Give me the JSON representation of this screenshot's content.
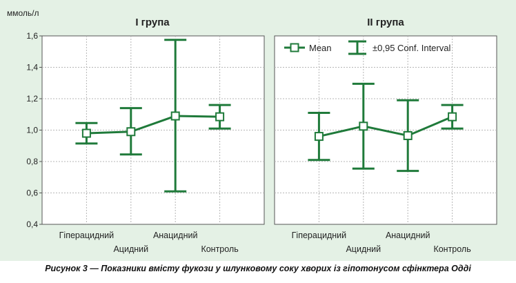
{
  "caption": "Рисунок 3 — Показники вмісту фукози у шлунковому соку хворих із гіпотонусом сфінктера Одді",
  "colors": {
    "background": "#e4f1e5",
    "series": "#1f7a3a",
    "grid": "#b5b5b5"
  },
  "chart_data": [
    {
      "type": "line",
      "title": "I група",
      "ylabel": "ммоль/л",
      "xlabel": "",
      "ylim": [
        0.4,
        1.6
      ],
      "yticks": [
        "0,4",
        "0,6",
        "0,8",
        "1,0",
        "1,2",
        "1,4",
        "1,6"
      ],
      "categories": [
        "Гіперацидний",
        "Ацидний",
        "Анацидний",
        "Контроль"
      ],
      "grid": true,
      "series": [
        {
          "name": "Mean",
          "values": [
            0.98,
            0.99,
            1.09,
            1.085
          ]
        },
        {
          "name": "±0,95 Conf. Interval",
          "lower": [
            0.915,
            0.845,
            0.61,
            1.01
          ],
          "upper": [
            1.045,
            1.14,
            1.575,
            1.16
          ]
        }
      ]
    },
    {
      "type": "line",
      "title": "II група",
      "ylabel": "",
      "xlabel": "",
      "ylim": [
        0.4,
        1.6
      ],
      "categories": [
        "Гіперацидний",
        "Ацидний",
        "Анацидний",
        "Контроль"
      ],
      "grid": true,
      "legend": {
        "position": "top",
        "entries": [
          "Mean",
          "±0,95 Conf. Interval"
        ]
      },
      "series": [
        {
          "name": "Mean",
          "values": [
            0.96,
            1.025,
            0.965,
            1.085
          ]
        },
        {
          "name": "±0,95 Conf. Interval",
          "lower": [
            0.81,
            0.755,
            0.74,
            1.01
          ],
          "upper": [
            1.11,
            1.295,
            1.19,
            1.16
          ]
        }
      ]
    }
  ]
}
